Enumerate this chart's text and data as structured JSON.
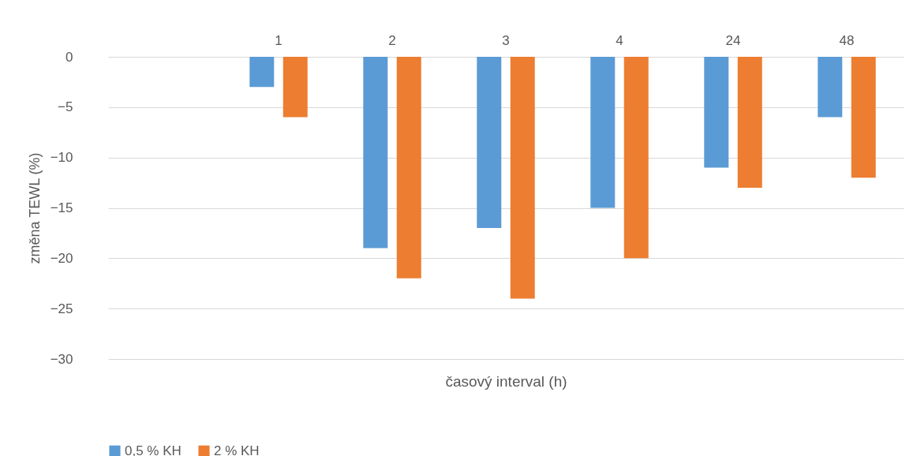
{
  "chart_data": {
    "type": "bar",
    "xlabel": "časový interval (h)",
    "ylabel": "změna TEWL (%)",
    "categories": [
      null,
      "1",
      "2",
      "3",
      "4",
      "24",
      "48"
    ],
    "series": [
      {
        "name": "0,5 % KH",
        "color": "#5b9bd5",
        "values": [
          null,
          -3,
          -19,
          -17,
          -15,
          -11,
          -6
        ]
      },
      {
        "name": "2 % KH",
        "color": "#ed7d31",
        "values": [
          null,
          -6,
          -22,
          -24,
          -20,
          -13,
          -12
        ]
      }
    ],
    "ylim": [
      -30,
      0
    ],
    "yticks": [
      -30,
      -25,
      -20,
      -15,
      -10,
      -5,
      0
    ],
    "grid": "y",
    "legend": "bottom"
  }
}
